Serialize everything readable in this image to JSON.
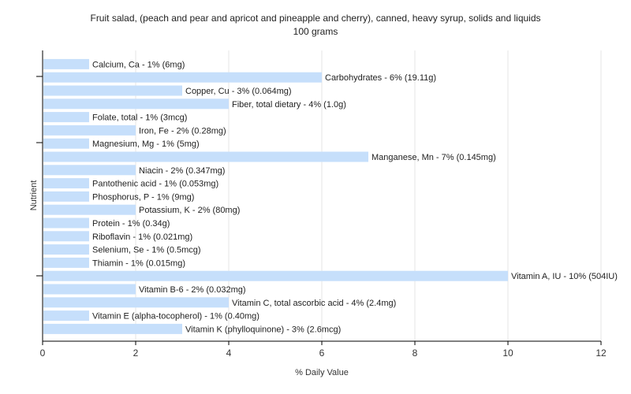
{
  "chart_data": {
    "type": "bar",
    "orientation": "horizontal",
    "title": "Fruit salad, (peach and pear and apricot and pineapple and cherry), canned, heavy syrup, solids and liquids",
    "subtitle": "100 grams",
    "xlabel": "% Daily Value",
    "ylabel": "Nutrient",
    "xlim": [
      0,
      12
    ],
    "xticks": [
      0,
      2,
      4,
      6,
      8,
      10,
      12
    ],
    "grid": true,
    "bar_color": "#c6dffb",
    "bars": [
      {
        "category": "Calcium, Ca",
        "value": 1,
        "label": "Calcium, Ca - 1% (6mg)"
      },
      {
        "category": "Carbohydrates",
        "value": 6,
        "label": "Carbohydrates - 6% (19.11g)"
      },
      {
        "category": "Copper, Cu",
        "value": 3,
        "label": "Copper, Cu - 3% (0.064mg)"
      },
      {
        "category": "Fiber, total dietary",
        "value": 4,
        "label": "Fiber, total dietary - 4% (1.0g)"
      },
      {
        "category": "Folate, total",
        "value": 1,
        "label": "Folate, total - 1% (3mcg)"
      },
      {
        "category": "Iron, Fe",
        "value": 2,
        "label": "Iron, Fe - 2% (0.28mg)"
      },
      {
        "category": "Magnesium, Mg",
        "value": 1,
        "label": "Magnesium, Mg - 1% (5mg)"
      },
      {
        "category": "Manganese, Mn",
        "value": 7,
        "label": "Manganese, Mn - 7% (0.145mg)"
      },
      {
        "category": "Niacin",
        "value": 2,
        "label": "Niacin - 2% (0.347mg)"
      },
      {
        "category": "Pantothenic acid",
        "value": 1,
        "label": "Pantothenic acid - 1% (0.053mg)"
      },
      {
        "category": "Phosphorus, P",
        "value": 1,
        "label": "Phosphorus, P - 1% (9mg)"
      },
      {
        "category": "Potassium, K",
        "value": 2,
        "label": "Potassium, K - 2% (80mg)"
      },
      {
        "category": "Protein",
        "value": 1,
        "label": "Protein - 1% (0.34g)"
      },
      {
        "category": "Riboflavin",
        "value": 1,
        "label": "Riboflavin - 1% (0.021mg)"
      },
      {
        "category": "Selenium, Se",
        "value": 1,
        "label": "Selenium, Se - 1% (0.5mcg)"
      },
      {
        "category": "Thiamin",
        "value": 1,
        "label": "Thiamin - 1% (0.015mg)"
      },
      {
        "category": "Vitamin A, IU",
        "value": 10,
        "label": "Vitamin A, IU - 10% (504IU)"
      },
      {
        "category": "Vitamin B-6",
        "value": 2,
        "label": "Vitamin B-6 - 2% (0.032mg)"
      },
      {
        "category": "Vitamin C, total ascorbic acid",
        "value": 4,
        "label": "Vitamin C, total ascorbic acid - 4% (2.4mg)"
      },
      {
        "category": "Vitamin E (alpha-tocopherol)",
        "value": 1,
        "label": "Vitamin E (alpha-tocopherol) - 1% (0.40mg)"
      },
      {
        "category": "Vitamin K (phylloquinone)",
        "value": 3,
        "label": "Vitamin K (phylloquinone) - 3% (2.6mcg)"
      }
    ]
  }
}
